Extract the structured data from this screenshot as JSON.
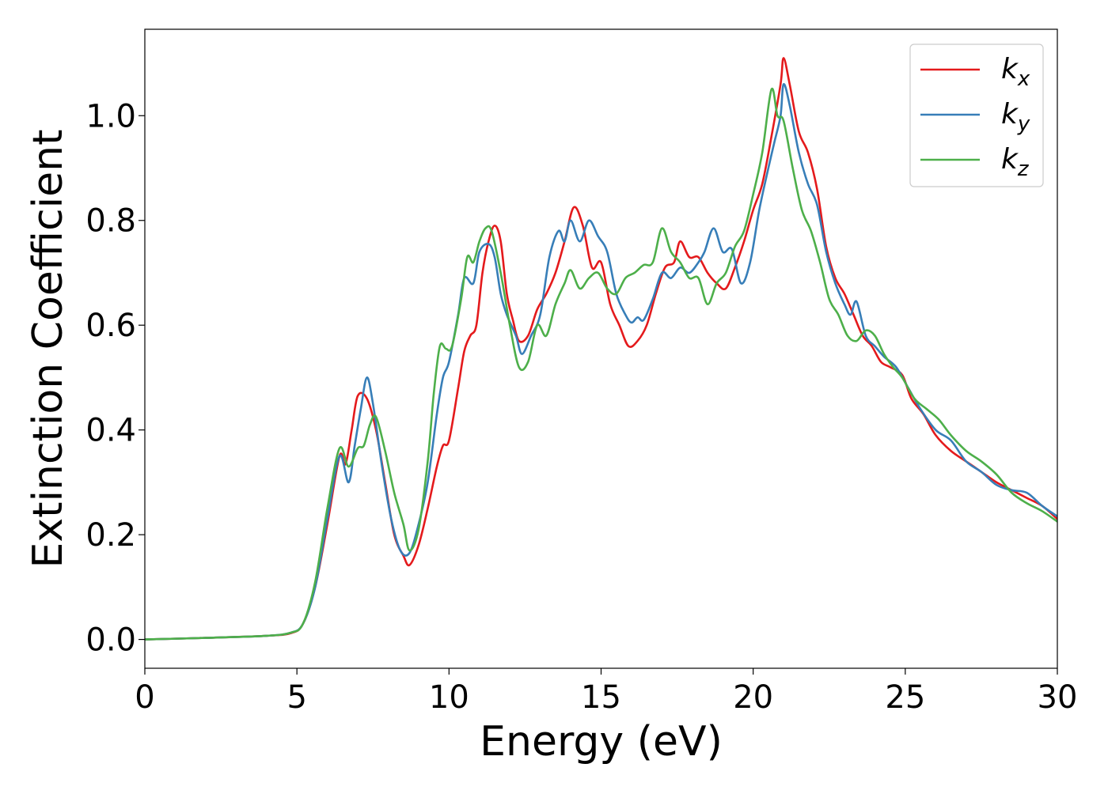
{
  "chart_data": {
    "type": "line",
    "title": "",
    "xlabel": "Energy (eV)",
    "ylabel": "Extinction Coefficient",
    "xlim": [
      0,
      30
    ],
    "ylim": [
      -0.055,
      1.165
    ],
    "xticks": [
      0,
      5,
      10,
      15,
      20,
      25,
      30
    ],
    "yticks": [
      0.0,
      0.2,
      0.4,
      0.6,
      0.8,
      1.0
    ],
    "xtick_labels": [
      "0",
      "5",
      "10",
      "15",
      "20",
      "25",
      "30"
    ],
    "ytick_labels": [
      "0.0",
      "0.2",
      "0.4",
      "0.6",
      "0.8",
      "1.0"
    ],
    "grid": false,
    "legend_position": "top-right",
    "series": [
      {
        "name": "k_x",
        "label_base": "k",
        "label_sub": "x",
        "color": "#e41a1c",
        "points": [
          [
            0,
            0
          ],
          [
            2,
            0.003
          ],
          [
            4,
            0.007
          ],
          [
            4.8,
            0.012
          ],
          [
            5.2,
            0.03
          ],
          [
            5.6,
            0.1
          ],
          [
            6.0,
            0.22
          ],
          [
            6.4,
            0.35
          ],
          [
            6.6,
            0.335
          ],
          [
            6.8,
            0.4
          ],
          [
            7.0,
            0.465
          ],
          [
            7.3,
            0.46
          ],
          [
            7.6,
            0.4
          ],
          [
            7.9,
            0.3
          ],
          [
            8.2,
            0.2
          ],
          [
            8.5,
            0.16
          ],
          [
            8.7,
            0.142
          ],
          [
            9.0,
            0.18
          ],
          [
            9.3,
            0.25
          ],
          [
            9.6,
            0.33
          ],
          [
            9.8,
            0.37
          ],
          [
            10.0,
            0.38
          ],
          [
            10.3,
            0.48
          ],
          [
            10.5,
            0.55
          ],
          [
            10.7,
            0.58
          ],
          [
            10.9,
            0.6
          ],
          [
            11.1,
            0.7
          ],
          [
            11.3,
            0.76
          ],
          [
            11.5,
            0.79
          ],
          [
            11.7,
            0.76
          ],
          [
            11.9,
            0.66
          ],
          [
            12.1,
            0.61
          ],
          [
            12.3,
            0.57
          ],
          [
            12.6,
            0.58
          ],
          [
            12.9,
            0.63
          ],
          [
            13.2,
            0.66
          ],
          [
            13.5,
            0.7
          ],
          [
            13.8,
            0.76
          ],
          [
            14.1,
            0.825
          ],
          [
            14.4,
            0.79
          ],
          [
            14.7,
            0.71
          ],
          [
            15.0,
            0.72
          ],
          [
            15.3,
            0.64
          ],
          [
            15.6,
            0.6
          ],
          [
            15.9,
            0.56
          ],
          [
            16.2,
            0.57
          ],
          [
            16.5,
            0.6
          ],
          [
            16.8,
            0.66
          ],
          [
            17.1,
            0.71
          ],
          [
            17.4,
            0.72
          ],
          [
            17.6,
            0.76
          ],
          [
            17.9,
            0.73
          ],
          [
            18.2,
            0.73
          ],
          [
            18.5,
            0.7
          ],
          [
            18.8,
            0.68
          ],
          [
            19.1,
            0.67
          ],
          [
            19.4,
            0.71
          ],
          [
            19.7,
            0.76
          ],
          [
            20.0,
            0.82
          ],
          [
            20.3,
            0.87
          ],
          [
            20.6,
            0.96
          ],
          [
            20.9,
            1.06
          ],
          [
            21.0,
            1.11
          ],
          [
            21.2,
            1.06
          ],
          [
            21.5,
            0.97
          ],
          [
            21.8,
            0.93
          ],
          [
            22.1,
            0.86
          ],
          [
            22.4,
            0.75
          ],
          [
            22.7,
            0.69
          ],
          [
            23.0,
            0.66
          ],
          [
            23.3,
            0.62
          ],
          [
            23.6,
            0.58
          ],
          [
            23.9,
            0.56
          ],
          [
            24.2,
            0.53
          ],
          [
            24.5,
            0.52
          ],
          [
            24.9,
            0.505
          ],
          [
            25.2,
            0.46
          ],
          [
            25.6,
            0.43
          ],
          [
            26.0,
            0.39
          ],
          [
            26.5,
            0.36
          ],
          [
            27.0,
            0.34
          ],
          [
            27.5,
            0.32
          ],
          [
            28.0,
            0.3
          ],
          [
            28.5,
            0.285
          ],
          [
            29.0,
            0.27
          ],
          [
            29.5,
            0.255
          ],
          [
            30,
            0.23
          ]
        ]
      },
      {
        "name": "k_y",
        "label_base": "k",
        "label_sub": "y",
        "color": "#377eb8",
        "points": [
          [
            0,
            0
          ],
          [
            2,
            0.003
          ],
          [
            4,
            0.007
          ],
          [
            4.8,
            0.013
          ],
          [
            5.2,
            0.03
          ],
          [
            5.6,
            0.1
          ],
          [
            6.0,
            0.23
          ],
          [
            6.4,
            0.35
          ],
          [
            6.7,
            0.3
          ],
          [
            6.9,
            0.37
          ],
          [
            7.1,
            0.44
          ],
          [
            7.3,
            0.5
          ],
          [
            7.5,
            0.45
          ],
          [
            7.8,
            0.33
          ],
          [
            8.1,
            0.23
          ],
          [
            8.4,
            0.17
          ],
          [
            8.7,
            0.165
          ],
          [
            9.0,
            0.22
          ],
          [
            9.3,
            0.3
          ],
          [
            9.6,
            0.43
          ],
          [
            9.8,
            0.5
          ],
          [
            10.0,
            0.53
          ],
          [
            10.3,
            0.62
          ],
          [
            10.5,
            0.69
          ],
          [
            10.8,
            0.68
          ],
          [
            11.0,
            0.74
          ],
          [
            11.3,
            0.755
          ],
          [
            11.5,
            0.73
          ],
          [
            11.7,
            0.66
          ],
          [
            11.9,
            0.62
          ],
          [
            12.2,
            0.58
          ],
          [
            12.4,
            0.545
          ],
          [
            12.7,
            0.58
          ],
          [
            13.0,
            0.62
          ],
          [
            13.3,
            0.73
          ],
          [
            13.6,
            0.78
          ],
          [
            13.8,
            0.76
          ],
          [
            14.0,
            0.8
          ],
          [
            14.3,
            0.76
          ],
          [
            14.6,
            0.8
          ],
          [
            14.9,
            0.77
          ],
          [
            15.2,
            0.74
          ],
          [
            15.5,
            0.66
          ],
          [
            15.8,
            0.62
          ],
          [
            16.0,
            0.605
          ],
          [
            16.2,
            0.615
          ],
          [
            16.4,
            0.61
          ],
          [
            16.7,
            0.65
          ],
          [
            17.0,
            0.7
          ],
          [
            17.3,
            0.69
          ],
          [
            17.6,
            0.71
          ],
          [
            17.9,
            0.7
          ],
          [
            18.2,
            0.72
          ],
          [
            18.4,
            0.74
          ],
          [
            18.7,
            0.785
          ],
          [
            19.0,
            0.74
          ],
          [
            19.3,
            0.745
          ],
          [
            19.6,
            0.68
          ],
          [
            19.9,
            0.72
          ],
          [
            20.2,
            0.82
          ],
          [
            20.5,
            0.9
          ],
          [
            20.7,
            0.95
          ],
          [
            20.9,
            1.0
          ],
          [
            21.0,
            1.06
          ],
          [
            21.2,
            1.02
          ],
          [
            21.5,
            0.93
          ],
          [
            21.8,
            0.87
          ],
          [
            22.1,
            0.83
          ],
          [
            22.4,
            0.74
          ],
          [
            22.7,
            0.68
          ],
          [
            23.0,
            0.64
          ],
          [
            23.2,
            0.62
          ],
          [
            23.4,
            0.645
          ],
          [
            23.7,
            0.58
          ],
          [
            24.0,
            0.56
          ],
          [
            24.3,
            0.54
          ],
          [
            24.7,
            0.52
          ],
          [
            25.1,
            0.48
          ],
          [
            25.5,
            0.44
          ],
          [
            26.0,
            0.4
          ],
          [
            26.5,
            0.38
          ],
          [
            27.0,
            0.34
          ],
          [
            27.5,
            0.32
          ],
          [
            28.0,
            0.295
          ],
          [
            28.5,
            0.285
          ],
          [
            29.0,
            0.28
          ],
          [
            29.5,
            0.255
          ],
          [
            30,
            0.235
          ]
        ]
      },
      {
        "name": "k_z",
        "label_base": "k",
        "label_sub": "z",
        "color": "#4daf4a",
        "points": [
          [
            0,
            0
          ],
          [
            2,
            0.003
          ],
          [
            4,
            0.007
          ],
          [
            4.8,
            0.013
          ],
          [
            5.2,
            0.03
          ],
          [
            5.6,
            0.11
          ],
          [
            6.0,
            0.25
          ],
          [
            6.4,
            0.365
          ],
          [
            6.7,
            0.33
          ],
          [
            7.0,
            0.365
          ],
          [
            7.2,
            0.37
          ],
          [
            7.4,
            0.41
          ],
          [
            7.6,
            0.425
          ],
          [
            7.9,
            0.36
          ],
          [
            8.2,
            0.28
          ],
          [
            8.5,
            0.22
          ],
          [
            8.7,
            0.17
          ],
          [
            9.0,
            0.21
          ],
          [
            9.3,
            0.34
          ],
          [
            9.5,
            0.47
          ],
          [
            9.7,
            0.56
          ],
          [
            9.9,
            0.555
          ],
          [
            10.1,
            0.56
          ],
          [
            10.4,
            0.65
          ],
          [
            10.6,
            0.73
          ],
          [
            10.8,
            0.72
          ],
          [
            11.0,
            0.76
          ],
          [
            11.2,
            0.785
          ],
          [
            11.4,
            0.78
          ],
          [
            11.7,
            0.7
          ],
          [
            12.0,
            0.6
          ],
          [
            12.3,
            0.52
          ],
          [
            12.6,
            0.53
          ],
          [
            12.9,
            0.6
          ],
          [
            13.2,
            0.58
          ],
          [
            13.5,
            0.64
          ],
          [
            13.8,
            0.68
          ],
          [
            14.0,
            0.705
          ],
          [
            14.3,
            0.67
          ],
          [
            14.6,
            0.69
          ],
          [
            14.9,
            0.7
          ],
          [
            15.2,
            0.67
          ],
          [
            15.5,
            0.66
          ],
          [
            15.8,
            0.69
          ],
          [
            16.1,
            0.7
          ],
          [
            16.4,
            0.715
          ],
          [
            16.7,
            0.72
          ],
          [
            17.0,
            0.785
          ],
          [
            17.3,
            0.74
          ],
          [
            17.6,
            0.72
          ],
          [
            17.9,
            0.69
          ],
          [
            18.2,
            0.69
          ],
          [
            18.5,
            0.64
          ],
          [
            18.8,
            0.68
          ],
          [
            19.1,
            0.7
          ],
          [
            19.4,
            0.75
          ],
          [
            19.7,
            0.78
          ],
          [
            20.0,
            0.85
          ],
          [
            20.3,
            0.93
          ],
          [
            20.6,
            1.05
          ],
          [
            20.8,
            1.0
          ],
          [
            21.0,
            0.99
          ],
          [
            21.3,
            0.9
          ],
          [
            21.6,
            0.82
          ],
          [
            21.9,
            0.78
          ],
          [
            22.2,
            0.72
          ],
          [
            22.5,
            0.65
          ],
          [
            22.8,
            0.62
          ],
          [
            23.1,
            0.58
          ],
          [
            23.4,
            0.57
          ],
          [
            23.7,
            0.59
          ],
          [
            24.0,
            0.58
          ],
          [
            24.3,
            0.545
          ],
          [
            24.6,
            0.52
          ],
          [
            24.9,
            0.5
          ],
          [
            25.3,
            0.46
          ],
          [
            25.7,
            0.44
          ],
          [
            26.1,
            0.42
          ],
          [
            26.5,
            0.39
          ],
          [
            27.0,
            0.36
          ],
          [
            27.5,
            0.34
          ],
          [
            28.0,
            0.315
          ],
          [
            28.5,
            0.28
          ],
          [
            29.0,
            0.26
          ],
          [
            29.5,
            0.245
          ],
          [
            30,
            0.225
          ]
        ]
      }
    ]
  }
}
